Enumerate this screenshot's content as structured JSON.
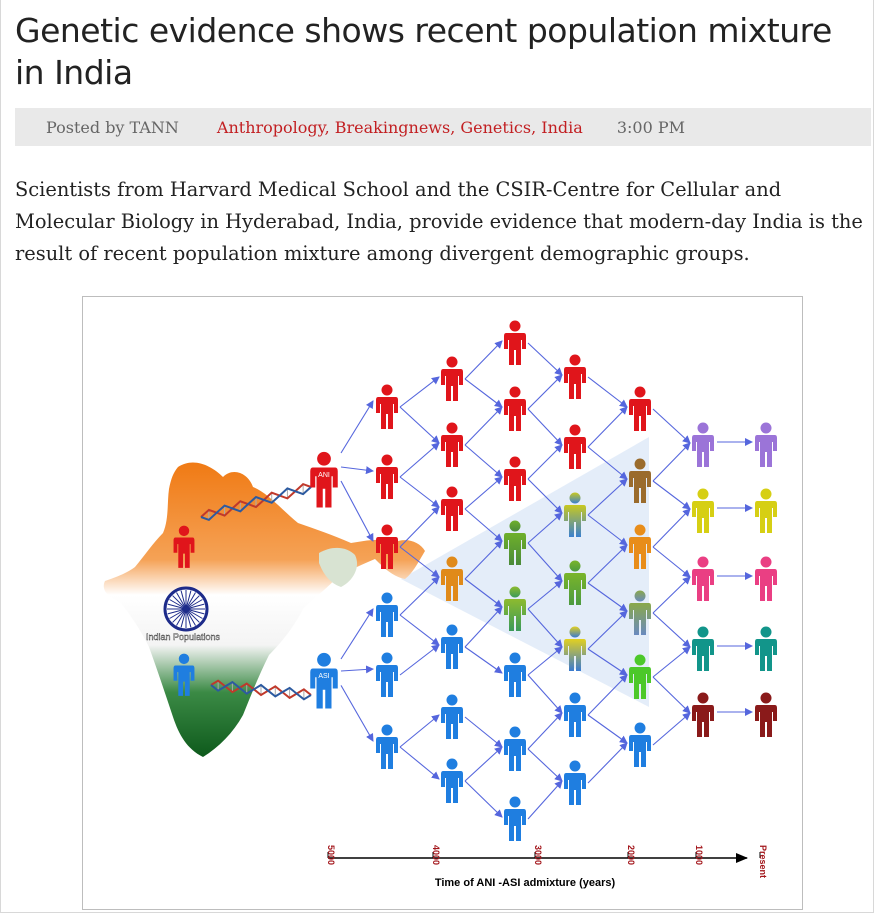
{
  "article": {
    "title": "Genetic evidence shows recent population mixture in India",
    "meta": {
      "posted_by": "Posted by TANN",
      "categories": [
        "Anthropology",
        "Breakingnews",
        "Genetics",
        "India"
      ],
      "separator": ", ",
      "time": "3:00 PM"
    },
    "intro": "Scientists from Harvard Medical School and the CSIR-Centre for Cellular and Molecular Biology in Hyderabad, India, provide evidence that modern-day India is the result of recent population mixture among divergent demographic groups."
  },
  "figure": {
    "map_label": "Indian Populations",
    "ani_label": "ANI",
    "asi_label": "ASI",
    "axis_ticks": [
      "5000",
      "4000",
      "3000",
      "2000",
      "1000",
      "Present"
    ],
    "axis_title": "Time of ANI -ASI admixture (years)",
    "colors": {
      "ani": "#e0151b",
      "asi": "#1f7ee0",
      "flag_saffron": "#f07a14",
      "flag_green": "#157a2a",
      "chakra": "#1d2b8a",
      "arrow": "#5566dd"
    }
  }
}
